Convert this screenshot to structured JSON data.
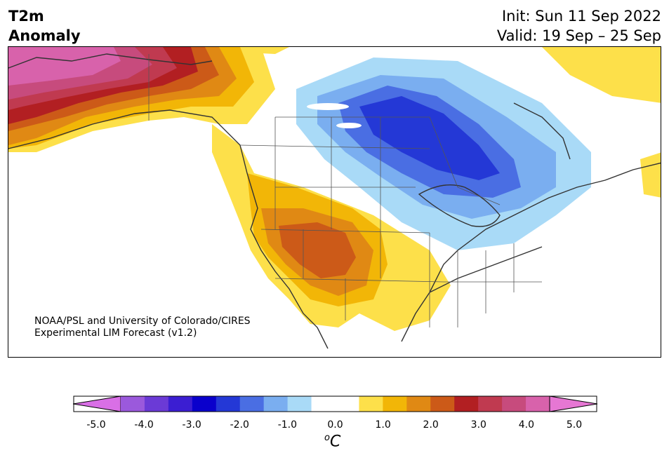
{
  "header": {
    "title_line1": "T2m",
    "title_line2": "Anomaly",
    "init": "Init: Sun 11 Sep 2022",
    "valid": "Valid: 19 Sep – 25 Sep"
  },
  "credit": {
    "line1": "NOAA/PSL and University of Colorado/CIRES",
    "line2": "Experimental LIM Forecast (v1.2)"
  },
  "colorbar": {
    "colors": [
      "#d96fe6",
      "#9b59dc",
      "#6b3ad6",
      "#3b1ed2",
      "#0a00cc",
      "#2438d6",
      "#4a6ee3",
      "#7aaef0",
      "#a9daf7",
      "#ffffff",
      "#ffffff",
      "#fde04a",
      "#f2b607",
      "#e08914",
      "#cc5a18",
      "#b21f22",
      "#c03a50",
      "#c74b7d",
      "#d862ab",
      "#e677d3"
    ],
    "ticks": [
      "-5.0",
      "-4.0",
      "-3.0",
      "-2.0",
      "-1.0",
      "0.0",
      "1.0",
      "2.0",
      "3.0",
      "4.0",
      "5.0"
    ],
    "unit": "C",
    "unit_sup": "o"
  },
  "legend_colors": {
    "purple": "#c74b7d",
    "deep_red": "#b21f22",
    "dark_orange": "#cc5a18",
    "orange": "#e08914",
    "gold": "#f2b607",
    "yellow": "#fde04a",
    "light_blue": "#a9daf7",
    "mid_blue": "#7aaef0",
    "blue": "#4a6ee3",
    "deep_blue": "#2438d6"
  }
}
